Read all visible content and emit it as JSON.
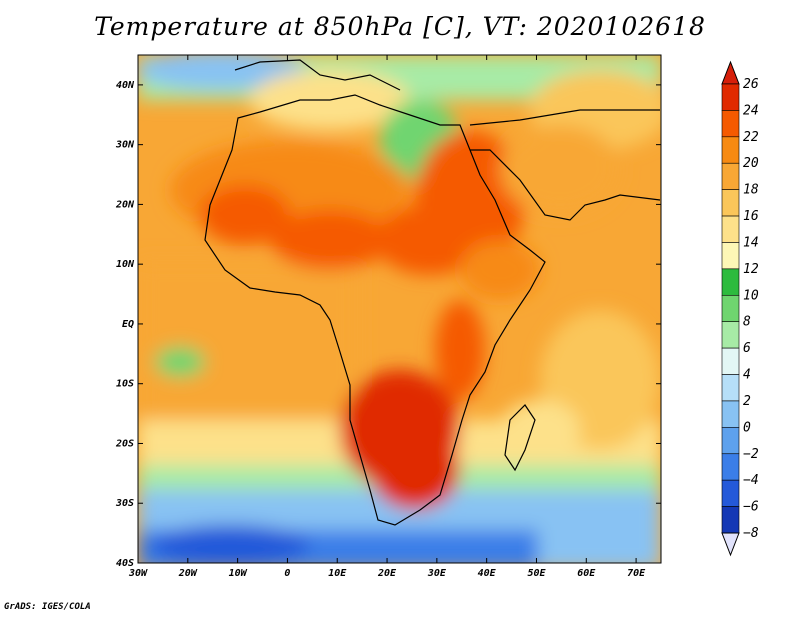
{
  "title": "Temperature at 850hPa [C], VT: 2020102618",
  "credit": "GrADS: IGES/COLA",
  "map": {
    "lon_range": [
      -30,
      75
    ],
    "lat_range": [
      -40,
      45
    ],
    "lon_ticks": [
      {
        "value": -30,
        "label": "30W"
      },
      {
        "value": -20,
        "label": "20W"
      },
      {
        "value": -10,
        "label": "10W"
      },
      {
        "value": 0,
        "label": "0"
      },
      {
        "value": 10,
        "label": "10E"
      },
      {
        "value": 20,
        "label": "20E"
      },
      {
        "value": 30,
        "label": "30E"
      },
      {
        "value": 40,
        "label": "40E"
      },
      {
        "value": 50,
        "label": "50E"
      },
      {
        "value": 60,
        "label": "60E"
      },
      {
        "value": 70,
        "label": "70E"
      }
    ],
    "lat_ticks": [
      {
        "value": 40,
        "label": "40N"
      },
      {
        "value": 30,
        "label": "30N"
      },
      {
        "value": 20,
        "label": "20N"
      },
      {
        "value": 10,
        "label": "10N"
      },
      {
        "value": 0,
        "label": "EQ"
      },
      {
        "value": -10,
        "label": "10S"
      },
      {
        "value": -20,
        "label": "20S"
      },
      {
        "value": -30,
        "label": "30S"
      },
      {
        "value": -40,
        "label": "40S"
      }
    ]
  },
  "colorbar": {
    "levels": [
      26,
      24,
      22,
      20,
      18,
      16,
      14,
      12,
      10,
      8,
      6,
      4,
      2,
      0,
      -2,
      -4,
      -6,
      -8
    ],
    "colors": [
      "#e02a00",
      "#f55a00",
      "#f78a12",
      "#f8a735",
      "#fac65a",
      "#fde18a",
      "#fdf7b6",
      "#2dbb3e",
      "#6fd56f",
      "#a7eba6",
      "#e3f7f5",
      "#b6dff8",
      "#88c2f3",
      "#5ea1ed",
      "#3b7ee8",
      "#2459d9",
      "#1438b5",
      "#0b1f8c"
    ],
    "over_color": "#d61f0a",
    "under_color": "#e1e3fc"
  }
}
